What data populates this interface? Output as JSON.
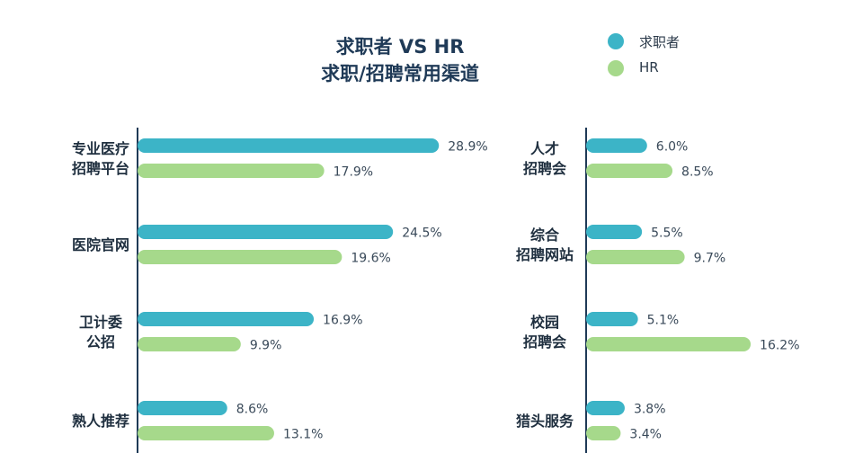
{
  "title": {
    "line1": "求职者 VS HR",
    "line2": "求职/招聘常用渠道"
  },
  "legend": [
    {
      "label": "求职者",
      "color": "#3cb4c7"
    },
    {
      "label": "HR",
      "color": "#a6d98b"
    }
  ],
  "chart_data": {
    "type": "bar",
    "orientation": "horizontal",
    "series": [
      {
        "name": "求职者",
        "color": "#3cb4c7"
      },
      {
        "name": "HR",
        "color": "#a6d98b"
      }
    ],
    "panels": [
      {
        "categories": [
          {
            "label": [
              "专业医疗",
              "招聘平台"
            ],
            "values": [
              28.9,
              17.9
            ]
          },
          {
            "label": [
              "医院官网"
            ],
            "values": [
              24.5,
              19.6
            ]
          },
          {
            "label": [
              "卫计委",
              "公招"
            ],
            "values": [
              16.9,
              9.9
            ]
          },
          {
            "label": [
              "熟人推荐"
            ],
            "values": [
              8.6,
              13.1
            ]
          }
        ]
      },
      {
        "categories": [
          {
            "label": [
              "人才",
              "招聘会"
            ],
            "values": [
              6.0,
              8.5
            ]
          },
          {
            "label": [
              "综合",
              "招聘网站"
            ],
            "values": [
              5.5,
              9.7
            ]
          },
          {
            "label": [
              "校园",
              "招聘会"
            ],
            "values": [
              5.1,
              16.2
            ]
          },
          {
            "label": [
              "猎头服务"
            ],
            "values": [
              3.8,
              3.4
            ]
          }
        ]
      }
    ],
    "value_suffix": "%"
  }
}
